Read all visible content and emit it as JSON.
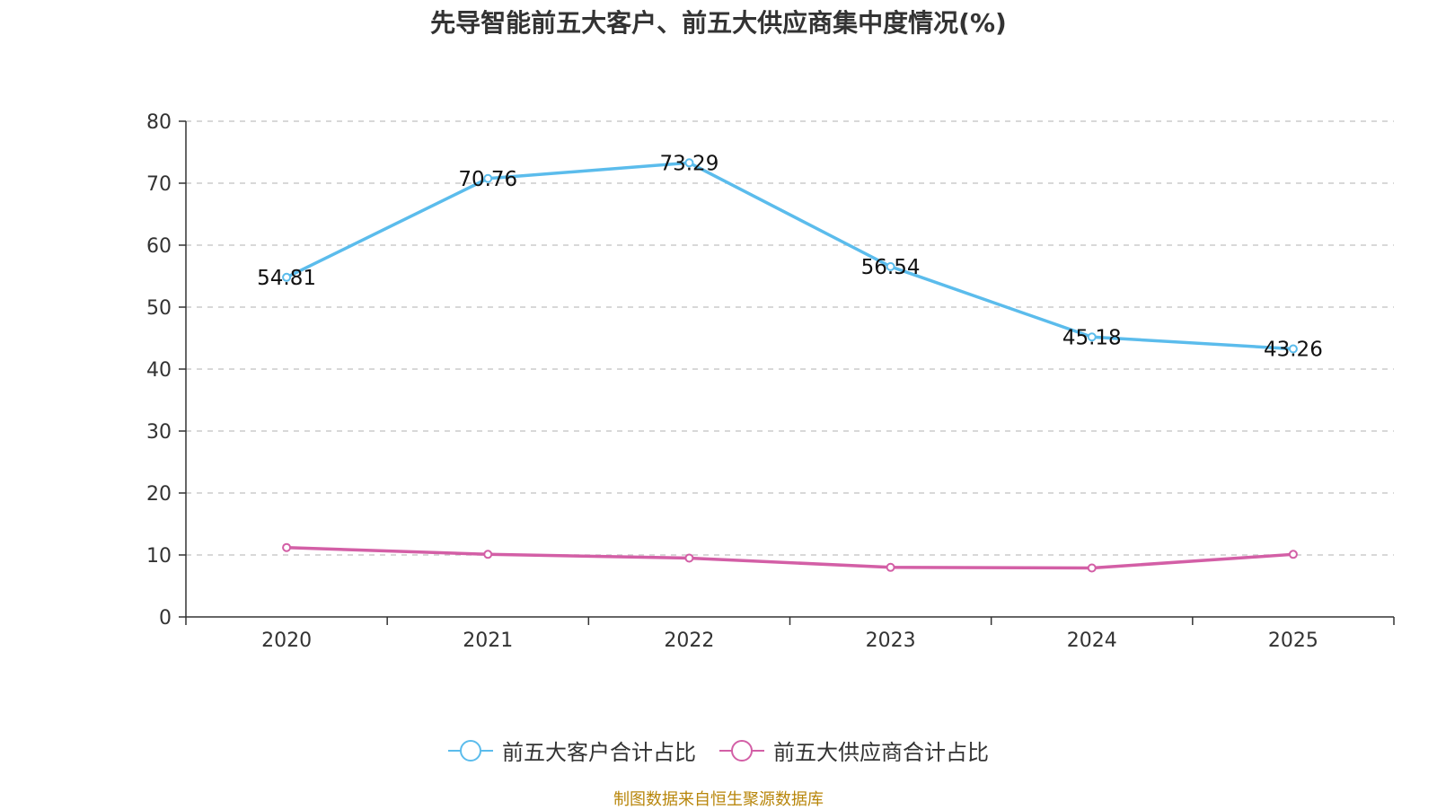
{
  "title": "先导智能前五大客户、前五大供应商集中度情况(%)",
  "source": "制图数据来自恒生聚源数据库",
  "colors": {
    "customers": "#5bbcec",
    "suppliers": "#d35fa6",
    "grid": "#cccccc",
    "axis": "#333333"
  },
  "chart_data": {
    "type": "line",
    "title": "先导智能前五大客户、前五大供应商集中度情况(%)",
    "categories": [
      "2020",
      "2021",
      "2022",
      "2023",
      "2024",
      "2025"
    ],
    "ylim": [
      0,
      80
    ],
    "yticks": [
      0,
      10,
      20,
      30,
      40,
      50,
      60,
      70,
      80
    ],
    "grid": true,
    "legend_position": "bottom-center",
    "series": [
      {
        "name": "前五大客户合计占比",
        "values": [
          54.81,
          70.76,
          73.29,
          56.54,
          45.18,
          43.26
        ],
        "labels": [
          "54.81",
          "70.76",
          "73.29",
          "56.54",
          "45.18",
          "43.26"
        ]
      },
      {
        "name": "前五大供应商合计占比",
        "values": [
          11.2,
          10.1,
          9.5,
          8.0,
          7.9,
          10.1
        ]
      }
    ]
  }
}
